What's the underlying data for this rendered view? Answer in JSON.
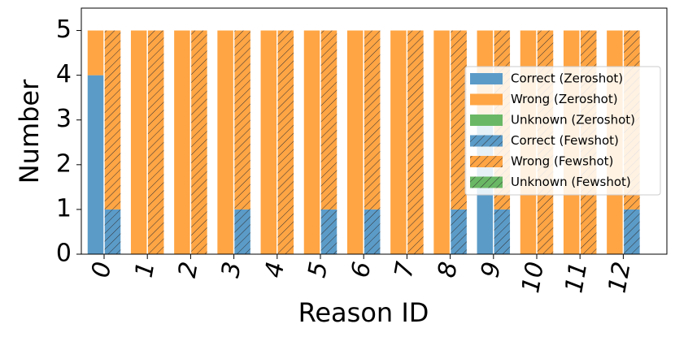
{
  "chart_data": {
    "type": "bar",
    "categories": [
      "0",
      "1",
      "2",
      "3",
      "4",
      "5",
      "6",
      "7",
      "8",
      "9",
      "10",
      "11",
      "12"
    ],
    "series": [
      {
        "name": "Correct (Zeroshot)",
        "group": "zeroshot",
        "hatch": false,
        "color": "#5b9bc8",
        "values": [
          4,
          0,
          0,
          0,
          0,
          0,
          0,
          0,
          0,
          3,
          0,
          0,
          0
        ]
      },
      {
        "name": "Wrong (Zeroshot)",
        "group": "zeroshot",
        "hatch": false,
        "color": "#ffa544",
        "values": [
          1,
          5,
          5,
          5,
          5,
          5,
          5,
          5,
          5,
          2,
          5,
          5,
          5
        ]
      },
      {
        "name": "Unknown (Zeroshot)",
        "group": "zeroshot",
        "hatch": false,
        "color": "#6ab865",
        "values": [
          0,
          0,
          0,
          0,
          0,
          0,
          0,
          0,
          0,
          0,
          0,
          0,
          0
        ]
      },
      {
        "name": "Correct (Fewshot)",
        "group": "fewshot",
        "hatch": true,
        "color": "#5b9bc8",
        "values": [
          1,
          0,
          0,
          1,
          0,
          1,
          1,
          0,
          1,
          1,
          0,
          0,
          1
        ]
      },
      {
        "name": "Wrong (Fewshot)",
        "group": "fewshot",
        "hatch": true,
        "color": "#ffa544",
        "values": [
          4,
          5,
          5,
          4,
          5,
          4,
          4,
          5,
          4,
          4,
          5,
          5,
          4
        ]
      },
      {
        "name": "Unknown (Fewshot)",
        "group": "fewshot",
        "hatch": true,
        "color": "#6ab865",
        "values": [
          0,
          0,
          0,
          0,
          0,
          0,
          0,
          0,
          0,
          0,
          0,
          0,
          0
        ]
      }
    ],
    "title": "",
    "xlabel": "Reason ID",
    "ylabel": "Number",
    "ylim": [
      0,
      5.5
    ],
    "yticks": [
      "0",
      "1",
      "2",
      "3",
      "4",
      "5"
    ],
    "legend_placement": "center-right",
    "grid": false
  }
}
